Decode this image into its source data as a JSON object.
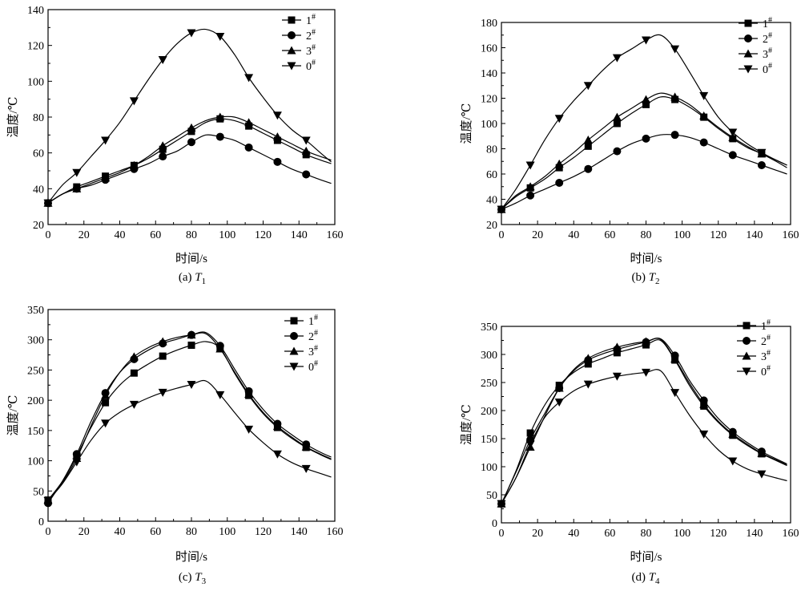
{
  "figure": {
    "series_names": [
      "1#",
      "2#",
      "3#",
      "0#"
    ],
    "markers": [
      "square",
      "circle",
      "triangle-up",
      "triangle-down"
    ]
  },
  "chart_data": [
    {
      "type": "line",
      "id": "T1",
      "caption_prefix": "(a) ",
      "caption_var": "T",
      "caption_sub": "1",
      "xlabel": "时间/s",
      "ylabel": "温度/℃",
      "xlim": [
        0,
        160
      ],
      "ylim": [
        20,
        140
      ],
      "xticks": [
        0,
        20,
        40,
        60,
        80,
        100,
        120,
        140,
        160
      ],
      "yticks": [
        20,
        40,
        60,
        80,
        100,
        120,
        140
      ],
      "legend": [
        "1",
        "2",
        "3",
        "0"
      ],
      "series": [
        {
          "name": "1#",
          "x": [
            0,
            8,
            16,
            24,
            32,
            40,
            48,
            56,
            64,
            72,
            80,
            88,
            96,
            104,
            112,
            120,
            128,
            136,
            144,
            152,
            158
          ],
          "values": [
            32,
            37,
            41,
            44,
            47,
            50,
            53,
            57,
            62,
            67,
            72,
            77,
            79,
            78,
            75,
            71,
            67,
            63,
            59,
            56,
            54
          ]
        },
        {
          "name": "2#",
          "x": [
            0,
            8,
            16,
            24,
            32,
            40,
            48,
            56,
            64,
            72,
            80,
            88,
            96,
            104,
            112,
            120,
            128,
            136,
            144,
            152,
            158
          ],
          "values": [
            32,
            37,
            40,
            42,
            45,
            48,
            51,
            54,
            58,
            61,
            66,
            70,
            69,
            67,
            63,
            59,
            55,
            51,
            48,
            45,
            43
          ]
        },
        {
          "name": "3#",
          "x": [
            0,
            8,
            16,
            24,
            32,
            40,
            48,
            56,
            64,
            72,
            80,
            88,
            96,
            104,
            112,
            120,
            128,
            136,
            144,
            152,
            158
          ],
          "values": [
            32,
            37,
            40,
            43,
            46,
            49,
            53,
            58,
            64,
            69,
            74,
            78,
            80,
            80,
            77,
            73,
            69,
            65,
            61,
            58,
            56
          ]
        },
        {
          "name": "0#",
          "x": [
            0,
            8,
            16,
            24,
            32,
            40,
            48,
            56,
            64,
            72,
            80,
            88,
            96,
            104,
            112,
            120,
            128,
            136,
            144,
            152,
            158
          ],
          "values": [
            32,
            42,
            49,
            58,
            67,
            77,
            89,
            101,
            112,
            121,
            127,
            129,
            125,
            115,
            102,
            91,
            81,
            73,
            67,
            60,
            55
          ]
        }
      ]
    },
    {
      "type": "line",
      "id": "T2",
      "caption_prefix": "(b) ",
      "caption_var": "T",
      "caption_sub": "2",
      "xlabel": "时间/s",
      "ylabel": "温度/℃",
      "xlim": [
        0,
        160
      ],
      "ylim": [
        20,
        180
      ],
      "xticks": [
        0,
        20,
        40,
        60,
        80,
        100,
        120,
        140,
        160
      ],
      "yticks": [
        20,
        40,
        60,
        80,
        100,
        120,
        140,
        160,
        180
      ],
      "legend": [
        "1",
        "2",
        "3",
        "0"
      ],
      "series": [
        {
          "name": "1#",
          "x": [
            0,
            8,
            16,
            24,
            32,
            40,
            48,
            56,
            64,
            72,
            80,
            88,
            96,
            104,
            112,
            120,
            128,
            136,
            144,
            152,
            158
          ],
          "values": [
            32,
            42,
            49,
            56,
            65,
            73,
            82,
            91,
            100,
            108,
            115,
            121,
            119,
            113,
            105,
            96,
            88,
            81,
            76,
            70,
            65
          ]
        },
        {
          "name": "2#",
          "x": [
            0,
            8,
            16,
            24,
            32,
            40,
            48,
            56,
            64,
            72,
            80,
            88,
            96,
            104,
            112,
            120,
            128,
            136,
            144,
            152,
            158
          ],
          "values": [
            32,
            37,
            43,
            48,
            53,
            58,
            64,
            71,
            78,
            84,
            88,
            91,
            91,
            89,
            85,
            80,
            75,
            71,
            67,
            63,
            60
          ]
        },
        {
          "name": "3#",
          "x": [
            0,
            8,
            16,
            24,
            32,
            40,
            48,
            56,
            64,
            72,
            80,
            88,
            96,
            104,
            112,
            120,
            128,
            136,
            144,
            152,
            158
          ],
          "values": [
            32,
            43,
            50,
            58,
            68,
            77,
            87,
            96,
            105,
            112,
            119,
            124,
            121,
            115,
            106,
            97,
            89,
            82,
            76,
            71,
            67
          ]
        },
        {
          "name": "0#",
          "x": [
            0,
            8,
            16,
            24,
            32,
            40,
            48,
            56,
            64,
            72,
            80,
            88,
            96,
            104,
            112,
            120,
            128,
            136,
            144,
            152,
            158
          ],
          "values": [
            32,
            48,
            67,
            87,
            104,
            118,
            130,
            142,
            152,
            159,
            166,
            170,
            159,
            141,
            122,
            105,
            93,
            84,
            77,
            71,
            67
          ]
        }
      ]
    },
    {
      "type": "line",
      "id": "T3",
      "caption_prefix": "(c) ",
      "caption_var": "T",
      "caption_sub": "3",
      "xlabel": "时间/s",
      "ylabel": "温度/℃",
      "xlim": [
        0,
        160
      ],
      "ylim": [
        0,
        350
      ],
      "xticks": [
        0,
        20,
        40,
        60,
        80,
        100,
        120,
        140,
        160
      ],
      "yticks": [
        0,
        50,
        100,
        150,
        200,
        250,
        300,
        350
      ],
      "legend": [
        "1",
        "2",
        "3",
        "0"
      ],
      "series": [
        {
          "name": "1#",
          "x": [
            0,
            8,
            16,
            24,
            32,
            40,
            48,
            56,
            64,
            72,
            80,
            88,
            96,
            104,
            112,
            120,
            128,
            136,
            144,
            152,
            158
          ],
          "values": [
            35,
            66,
            108,
            155,
            196,
            225,
            245,
            260,
            273,
            283,
            291,
            297,
            286,
            245,
            208,
            178,
            155,
            137,
            122,
            110,
            102
          ]
        },
        {
          "name": "2#",
          "x": [
            0,
            8,
            16,
            24,
            32,
            40,
            48,
            56,
            64,
            72,
            80,
            88,
            96,
            104,
            112,
            120,
            128,
            136,
            144,
            152,
            158
          ],
          "values": [
            30,
            66,
            111,
            165,
            212,
            246,
            268,
            283,
            294,
            301,
            308,
            312,
            290,
            252,
            215,
            185,
            161,
            143,
            127,
            114,
            106
          ]
        },
        {
          "name": "3#",
          "x": [
            0,
            8,
            16,
            24,
            32,
            40,
            48,
            56,
            64,
            72,
            80,
            88,
            96,
            104,
            112,
            120,
            128,
            136,
            144,
            152,
            158
          ],
          "values": [
            35,
            64,
            104,
            158,
            208,
            246,
            272,
            287,
            297,
            304,
            308,
            310,
            285,
            247,
            210,
            180,
            157,
            139,
            123,
            111,
            103
          ]
        },
        {
          "name": "0#",
          "x": [
            0,
            8,
            16,
            24,
            32,
            40,
            48,
            56,
            64,
            72,
            80,
            88,
            96,
            104,
            112,
            120,
            128,
            136,
            144,
            152,
            158
          ],
          "values": [
            34,
            62,
            98,
            134,
            162,
            180,
            193,
            204,
            213,
            220,
            226,
            232,
            209,
            180,
            152,
            130,
            111,
            97,
            87,
            79,
            73
          ]
        }
      ]
    },
    {
      "type": "line",
      "id": "T4",
      "caption_prefix": "(d) ",
      "caption_var": "T",
      "caption_sub": "4",
      "xlabel": "时间/s",
      "ylabel": "温度/℃",
      "xlim": [
        0,
        160
      ],
      "ylim": [
        0,
        350
      ],
      "xticks": [
        0,
        20,
        40,
        60,
        80,
        100,
        120,
        140,
        160
      ],
      "yticks": [
        0,
        50,
        100,
        150,
        200,
        250,
        300,
        350
      ],
      "legend": [
        "1",
        "2",
        "3",
        "0"
      ],
      "series": [
        {
          "name": "1#",
          "x": [
            0,
            8,
            16,
            24,
            32,
            40,
            48,
            56,
            64,
            72,
            80,
            88,
            96,
            104,
            112,
            120,
            128,
            136,
            144,
            152,
            158
          ],
          "values": [
            34,
            92,
            160,
            210,
            245,
            268,
            283,
            293,
            303,
            310,
            317,
            325,
            290,
            245,
            208,
            179,
            156,
            138,
            123,
            111,
            102
          ]
        },
        {
          "name": "2#",
          "x": [
            0,
            8,
            16,
            24,
            32,
            40,
            48,
            56,
            64,
            72,
            80,
            88,
            96,
            104,
            112,
            120,
            128,
            136,
            144,
            152,
            158
          ],
          "values": [
            34,
            90,
            148,
            195,
            240,
            271,
            290,
            301,
            309,
            316,
            322,
            328,
            298,
            254,
            218,
            186,
            162,
            143,
            127,
            114,
            105
          ]
        },
        {
          "name": "3#",
          "x": [
            0,
            8,
            16,
            24,
            32,
            40,
            48,
            56,
            64,
            72,
            80,
            88,
            96,
            104,
            112,
            120,
            128,
            136,
            144,
            152,
            158
          ],
          "values": [
            34,
            80,
            135,
            190,
            240,
            273,
            293,
            305,
            313,
            319,
            323,
            327,
            292,
            249,
            211,
            181,
            158,
            140,
            124,
            112,
            103
          ]
        },
        {
          "name": "0#",
          "x": [
            0,
            8,
            16,
            24,
            32,
            40,
            48,
            56,
            64,
            72,
            80,
            88,
            96,
            104,
            112,
            120,
            128,
            136,
            144,
            152,
            158
          ],
          "values": [
            34,
            80,
            140,
            188,
            215,
            235,
            247,
            255,
            261,
            265,
            268,
            271,
            232,
            192,
            158,
            130,
            110,
            96,
            87,
            80,
            75
          ]
        }
      ]
    }
  ]
}
